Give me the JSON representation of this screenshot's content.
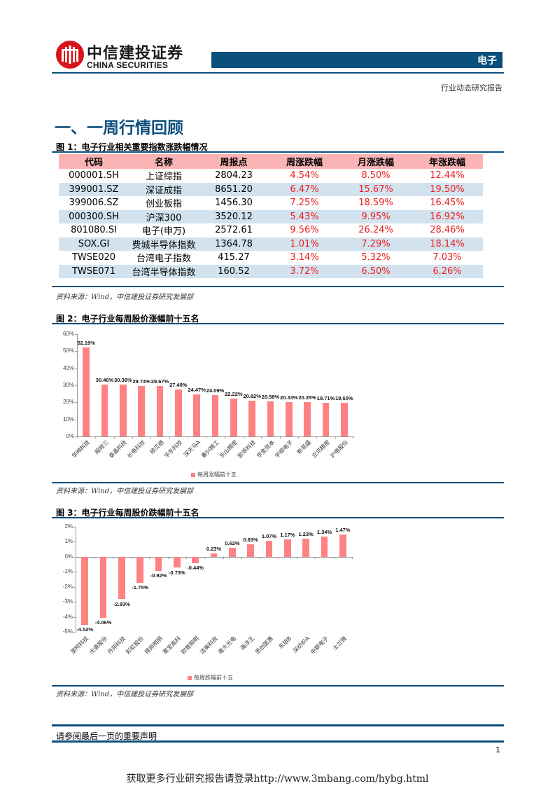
{
  "header": {
    "logo_cn": "中信建投证券",
    "logo_en": "CHINA SECURITIES",
    "sector": "电子",
    "report_type": "行业动态研究报告"
  },
  "section_title": "一、一周行情回顾",
  "figure1": {
    "caption": "图 1：电子行业相关重要指数涨跌幅情况",
    "columns": [
      "代码",
      "名称",
      "周报点",
      "周涨跌幅",
      "月涨跌幅",
      "年涨跌幅"
    ],
    "rows": [
      [
        "000001.SH",
        "上证综指",
        "2804.23",
        "4.54%",
        "8.50%",
        "12.44%"
      ],
      [
        "399001.SZ",
        "深证成指",
        "8651.20",
        "6.47%",
        "15.67%",
        "19.50%"
      ],
      [
        "399006.SZ",
        "创业板指",
        "1456.30",
        "7.25%",
        "18.59%",
        "16.45%"
      ],
      [
        "000300.SH",
        "沪深300",
        "3520.12",
        "5.43%",
        "9.95%",
        "16.92%"
      ],
      [
        "801080.SI",
        "电子(申万)",
        "2572.61",
        "9.56%",
        "26.24%",
        "28.46%"
      ],
      [
        "SOX.GI",
        "费城半导体指数",
        "1364.78",
        "1.01%",
        "7.29%",
        "18.14%"
      ],
      [
        "TWSE020",
        "台湾电子指数",
        "415.27",
        "3.14%",
        "5.32%",
        "7.03%"
      ],
      [
        "TWSE071",
        "台湾半导体指数",
        "160.52",
        "3.72%",
        "6.50%",
        "6.26%"
      ]
    ],
    "source": "资料来源：Wind，中信建投证券研究发展部"
  },
  "figure2": {
    "caption": "图 2：电子行业每周股价涨幅前十五名",
    "source": "资料来源：Wind，中信建投证券研究发展部"
  },
  "figure3": {
    "caption": "图 3：电子行业每周股价跌幅前十五名",
    "source": "资料来源：Wind，中信建投证券研究发展部"
  },
  "chart_data": [
    {
      "type": "bar",
      "title": "电子行业每周股价涨幅前十五名",
      "categories": [
        "华映科技",
        "超频三",
        "泰晶科技",
        "长电科技",
        "硕贝德",
        "华东科技",
        "深天马A",
        "春兴精工",
        "东山精密",
        "欧菲科技",
        "华金资本",
        "宇顺电子",
        "新易盛",
        "立讯精密",
        "沪电股份"
      ],
      "series": [
        {
          "name": "每周涨幅前十五",
          "values": [
            52.19,
            30.46,
            30.36,
            29.74,
            29.67,
            27.49,
            24.47,
            24.09,
            22.22,
            20.82,
            20.58,
            20.33,
            20.25,
            19.71,
            19.6
          ]
        }
      ],
      "labels": [
        "52.19%",
        "30.46%",
        "30.36%",
        "29.74%",
        "29.67%",
        "27.49%",
        "24.47%",
        "24.09%",
        "22.22%",
        "20.82%",
        "20.58%",
        "20.33%",
        "20.25%",
        "19.71%",
        "19.60%"
      ],
      "yticks": [
        "0%",
        "10%",
        "20%",
        "30%",
        "40%",
        "50%",
        "60%"
      ],
      "ylim": [
        0,
        60
      ],
      "xlabel": "",
      "ylabel": "",
      "legend": "每周涨幅前十五",
      "legend_position": "bottom"
    },
    {
      "type": "bar",
      "title": "电子行业每周股价跌幅前十五名",
      "categories": [
        "澳柯科技",
        "光谱股份",
        "丹邦科技",
        "彩虹股份",
        "得邦照明",
        "莱宝高科",
        "欧普照明",
        "洁美科技",
        "南大光电",
        "海洋王",
        "思创医惠",
        "东旭B",
        "深纺织A",
        "中颖电子",
        "士兰微"
      ],
      "series": [
        {
          "name": "每周跌幅前十五",
          "values": [
            -4.52,
            -4.06,
            -2.83,
            -1.75,
            -0.92,
            -0.73,
            -0.44,
            0.23,
            0.62,
            0.83,
            1.07,
            1.17,
            1.23,
            1.34,
            1.47
          ]
        }
      ],
      "labels": [
        "-4.52%",
        "-4.06%",
        "-2.83%",
        "-1.75%",
        "-0.92%",
        "-0.73%",
        "-0.44%",
        "0.23%",
        "0.62%",
        "0.83%",
        "1.07%",
        "1.17%",
        "1.23%",
        "1.34%",
        "1.47%"
      ],
      "yticks": [
        "-5%",
        "-4%",
        "-3%",
        "-2%",
        "-1%",
        "0%",
        "1%",
        "2%"
      ],
      "ylim": [
        -5,
        2
      ],
      "xlabel": "",
      "ylabel": "",
      "legend": "每周跌幅前十五",
      "legend_position": "bottom"
    }
  ],
  "footer": {
    "disclaimer": "请参阅最后一页的重要声明",
    "page_number": "1",
    "promo": "获取更多行业研究报告请登录http://www.3mbang.com/hybg.html"
  }
}
